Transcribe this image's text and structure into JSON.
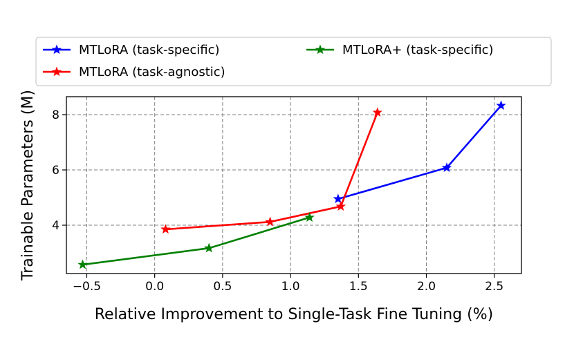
{
  "chart_data": {
    "type": "line",
    "title": "",
    "xlabel": "Relative Improvement to Single-Task Fine Tuning (%)",
    "ylabel": "Trainable Parameters (M)",
    "xlim": [
      -0.65,
      2.7
    ],
    "ylim": [
      2.25,
      8.65
    ],
    "xticks": [
      -0.5,
      0.0,
      0.5,
      1.0,
      1.5,
      2.0,
      2.5
    ],
    "xtick_labels": [
      "−0.5",
      "0.0",
      "0.5",
      "1.0",
      "1.5",
      "2.0",
      "2.5"
    ],
    "yticks": [
      4,
      6,
      8
    ],
    "ytick_labels": [
      "4",
      "6",
      "8"
    ],
    "grid": true,
    "legend_position": "top",
    "series": [
      {
        "name": "MTLoRA (task-specific)",
        "color": "#0000ff",
        "marker": "star",
        "x": [
          1.35,
          2.15,
          2.55
        ],
        "y": [
          4.95,
          6.08,
          8.33
        ]
      },
      {
        "name": "MTLoRA (task-agnostic)",
        "color": "#ff0000",
        "marker": "star",
        "x": [
          0.08,
          0.85,
          1.37,
          1.64
        ],
        "y": [
          3.85,
          4.12,
          4.68,
          8.08
        ]
      },
      {
        "name": "MTLoRA+ (task-specific)",
        "color": "#008000",
        "marker": "star",
        "x": [
          -0.53,
          0.4,
          1.14
        ],
        "y": [
          2.57,
          3.17,
          4.28
        ]
      }
    ]
  }
}
